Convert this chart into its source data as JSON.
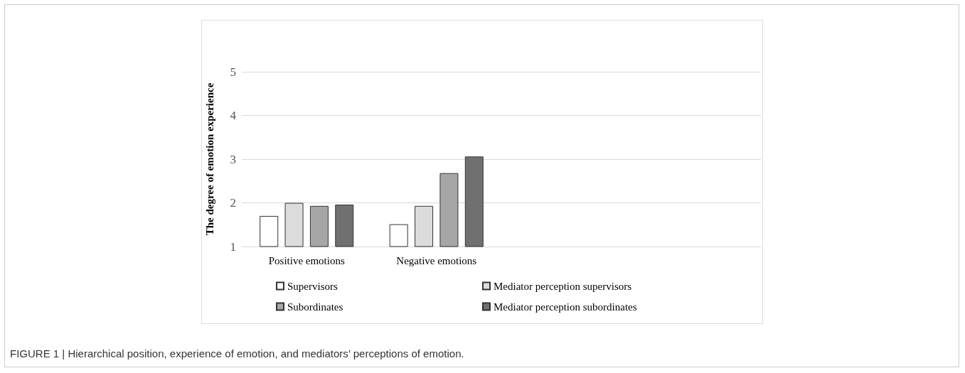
{
  "chart_data": {
    "type": "bar",
    "ylabel": "The degree of emotion experience",
    "categories": [
      "Positive emotions",
      "Negative emotions",
      null,
      null
    ],
    "series": [
      {
        "name": "Supervisors",
        "color": "#ffffff",
        "values": [
          1.7,
          1.51,
          null,
          null
        ]
      },
      {
        "name": "Mediator perception supervisors",
        "color": "#dcdcdc",
        "values": [
          2.0,
          1.93,
          null,
          null
        ]
      },
      {
        "name": "Subordinates",
        "color": "#a6a6a6",
        "values": [
          1.93,
          2.68,
          null,
          null
        ]
      },
      {
        "name": "Mediator perception subordinates",
        "color": "#707070",
        "values": [
          1.96,
          3.06,
          null,
          null
        ]
      }
    ],
    "ylim": [
      1,
      5
    ],
    "yticks": [
      1,
      2,
      3,
      4,
      5
    ],
    "grid": "y",
    "legend": "bottom",
    "annotations": [
      "FIGURE 1 | Hierarchical position, experience of emotion, and mediators’ perceptions of emotion."
    ]
  }
}
